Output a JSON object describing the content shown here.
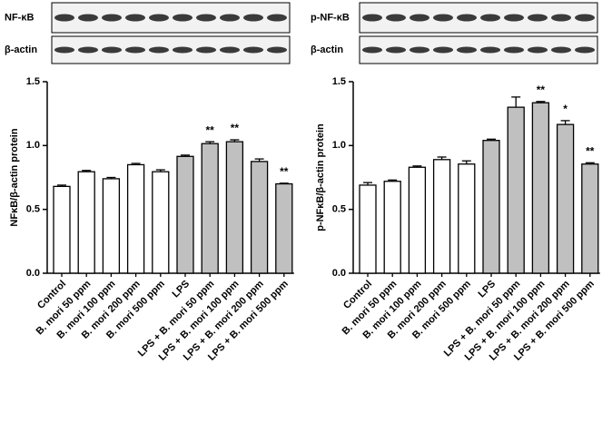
{
  "blots": [
    {
      "target_label": "NF-κB",
      "control_label": "β-actin"
    },
    {
      "target_label": "p-NF-κB",
      "control_label": "β-actin"
    }
  ],
  "chart_data": [
    {
      "type": "bar",
      "ylabel": "NFκB/β-actin protein",
      "categories": [
        "Control",
        "B. mori 50 ppm",
        "B. mori 100 ppm",
        "B. mori 200 ppm",
        "B. mori 500 ppm",
        "LPS",
        "LPS + B. mori 50 ppm",
        "LPS + B. mori 100 ppm",
        "LPS + B. mori 200 ppm",
        "LPS + B. mori 500 ppm"
      ],
      "values": [
        0.68,
        0.795,
        0.74,
        0.85,
        0.795,
        0.915,
        1.015,
        1.03,
        0.875,
        0.7
      ],
      "errors": [
        0.01,
        0.01,
        0.01,
        0.01,
        0.015,
        0.01,
        0.015,
        0.015,
        0.02,
        0.005
      ],
      "colors": [
        "#ffffff",
        "#ffffff",
        "#ffffff",
        "#ffffff",
        "#ffffff",
        "#c0c0c0",
        "#c0c0c0",
        "#c0c0c0",
        "#c0c0c0",
        "#c0c0c0"
      ],
      "annotations": [
        {
          "category": "LPS + B. mori 50 ppm",
          "text": "**"
        },
        {
          "category": "LPS + B. mori 100 ppm",
          "text": "**"
        },
        {
          "category": "LPS + B. mori 500 ppm",
          "text": "**"
        }
      ],
      "ylim": [
        0,
        1.5
      ],
      "yticks": [
        {
          "value": 0,
          "label": "0.0"
        },
        {
          "value": 0.5,
          "label": "0.5"
        },
        {
          "value": 1,
          "label": "1.0"
        },
        {
          "value": 1.5,
          "label": "1.5"
        }
      ]
    },
    {
      "type": "bar",
      "ylabel": "p-NFκB/β-actin protein",
      "categories": [
        "Control",
        "B. mori 50 ppm",
        "B. mori 100 ppm",
        "B. mori 200 ppm",
        "B. mori 500 ppm",
        "LPS",
        "LPS + B. mori 50 ppm",
        "LPS + B. mori 100 ppm",
        "LPS + B. mori 200 ppm",
        "LPS + B. mori 500 ppm"
      ],
      "values": [
        0.69,
        0.72,
        0.83,
        0.89,
        0.855,
        1.04,
        1.3,
        1.335,
        1.165,
        0.855
      ],
      "errors": [
        0.02,
        0.01,
        0.01,
        0.02,
        0.025,
        0.01,
        0.08,
        0.01,
        0.03,
        0.01
      ],
      "colors": [
        "#ffffff",
        "#ffffff",
        "#ffffff",
        "#ffffff",
        "#ffffff",
        "#c0c0c0",
        "#c0c0c0",
        "#c0c0c0",
        "#c0c0c0",
        "#c0c0c0"
      ],
      "annotations": [
        {
          "category": "LPS + B. mori 100 ppm",
          "text": "**"
        },
        {
          "category": "LPS + B. mori 200 ppm",
          "text": "*"
        },
        {
          "category": "LPS + B. mori 500 ppm",
          "text": "**"
        }
      ],
      "ylim": [
        0,
        1.5
      ],
      "yticks": [
        {
          "value": 0,
          "label": "0.0"
        },
        {
          "value": 0.5,
          "label": "0.5"
        },
        {
          "value": 1,
          "label": "1.0"
        },
        {
          "value": 1.5,
          "label": "1.5"
        }
      ]
    }
  ]
}
